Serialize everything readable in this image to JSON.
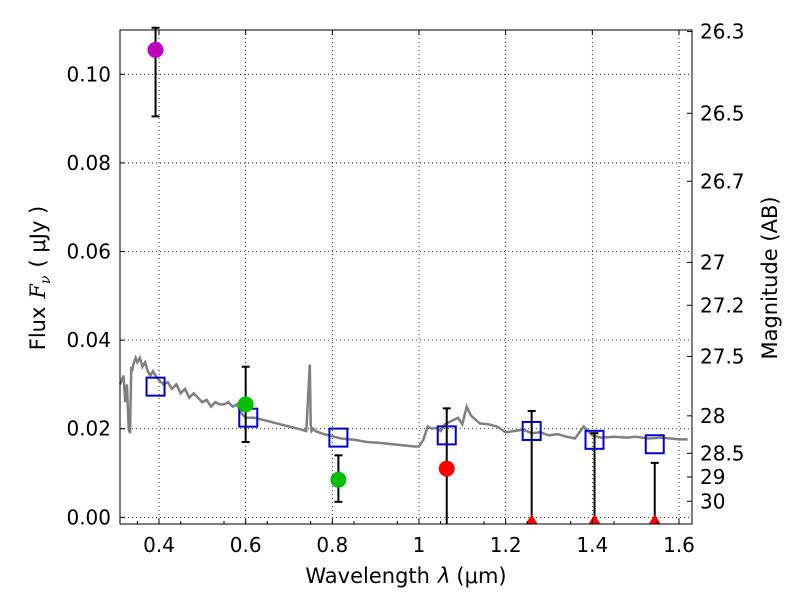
{
  "chart_data": {
    "type": "scatter",
    "xlabel_text": "Wavelength",
    "xlabel_symbol": "λ",
    "xlabel_unit": "(μm)",
    "ylabel_text": "Flux",
    "ylabel_symbol": "F",
    "ylabel_subscript": "ν",
    "ylabel_unit": "( μJy )",
    "y2label": "Magnitude (AB)",
    "xlim": [
      0.31,
      1.63
    ],
    "ylim": [
      -0.0015,
      0.11
    ],
    "xticks": [
      0.4,
      0.6,
      0.8,
      1.0,
      1.2,
      1.4,
      1.6
    ],
    "xtick_labels": [
      "0.4",
      "0.6",
      "0.8",
      "1",
      "1.2",
      "1.4",
      "1.6"
    ],
    "yticks": [
      0.0,
      0.02,
      0.04,
      0.06,
      0.08,
      0.1
    ],
    "ytick_labels": [
      "0.00",
      "0.02",
      "0.04",
      "0.06",
      "0.08",
      "0.10"
    ],
    "y2ticks": [
      {
        "mag": 26.3,
        "label": "26.3"
      },
      {
        "mag": 26.5,
        "label": "26.5"
      },
      {
        "mag": 26.7,
        "label": "26.7"
      },
      {
        "mag": 27.0,
        "label": "27"
      },
      {
        "mag": 27.2,
        "label": "27.2"
      },
      {
        "mag": 27.5,
        "label": "27.5"
      },
      {
        "mag": 28.0,
        "label": "28"
      },
      {
        "mag": 28.5,
        "label": "28.5"
      },
      {
        "mag": 29.0,
        "label": "29"
      },
      {
        "mag": 30.0,
        "label": "30"
      }
    ],
    "observed_points": [
      {
        "x": 0.392,
        "y": 0.1055,
        "yerr_low": 0.0905,
        "yerr_high": 0.1105,
        "color": "#bf00bf",
        "upper_limit": false
      },
      {
        "x": 0.6,
        "y": 0.0255,
        "yerr_low": 0.017,
        "yerr_high": 0.034,
        "color": "#00bf00",
        "upper_limit": false
      },
      {
        "x": 0.814,
        "y": 0.0085,
        "yerr_low": 0.0035,
        "yerr_high": 0.014,
        "color": "#00bf00",
        "upper_limit": false
      },
      {
        "x": 1.064,
        "y": 0.011,
        "yerr_low": -0.0015,
        "yerr_high": 0.0246,
        "color": "#ff0000",
        "upper_limit": false
      },
      {
        "x": 1.26,
        "y": 0.0,
        "yerr_low": -0.0015,
        "yerr_high": 0.024,
        "color": "#ff0000",
        "upper_limit": true
      },
      {
        "x": 1.405,
        "y": 0.0,
        "yerr_low": -0.0015,
        "yerr_high": 0.019,
        "color": "#ff0000",
        "upper_limit": true
      },
      {
        "x": 1.544,
        "y": 0.0,
        "yerr_low": -0.0015,
        "yerr_high": 0.0123,
        "color": "#ff0000",
        "upper_limit": true
      }
    ],
    "model_photometry": [
      {
        "x": 0.392,
        "y": 0.0295
      },
      {
        "x": 0.606,
        "y": 0.0225
      },
      {
        "x": 0.814,
        "y": 0.018
      },
      {
        "x": 1.064,
        "y": 0.0185
      },
      {
        "x": 1.26,
        "y": 0.0195
      },
      {
        "x": 1.405,
        "y": 0.0175
      },
      {
        "x": 1.544,
        "y": 0.0165
      }
    ],
    "sed_model": {
      "color": "#808080",
      "x": [
        0.31,
        0.318,
        0.322,
        0.326,
        0.33,
        0.333,
        0.336,
        0.338,
        0.342,
        0.346,
        0.35,
        0.356,
        0.362,
        0.368,
        0.374,
        0.38,
        0.386,
        0.392,
        0.4,
        0.41,
        0.42,
        0.43,
        0.44,
        0.45,
        0.46,
        0.47,
        0.48,
        0.49,
        0.5,
        0.51,
        0.52,
        0.53,
        0.54,
        0.55,
        0.56,
        0.57,
        0.58,
        0.59,
        0.6,
        0.62,
        0.64,
        0.66,
        0.68,
        0.7,
        0.72,
        0.74,
        0.748,
        0.75,
        0.752,
        0.756,
        0.76,
        0.78,
        0.8,
        0.82,
        0.85,
        0.88,
        0.91,
        0.94,
        0.97,
        0.99,
        1.0,
        1.01,
        1.02,
        1.03,
        1.04,
        1.05,
        1.06,
        1.07,
        1.08,
        1.09,
        1.1,
        1.11,
        1.12,
        1.14,
        1.16,
        1.18,
        1.2,
        1.22,
        1.24,
        1.26,
        1.28,
        1.3,
        1.32,
        1.34,
        1.36,
        1.38,
        1.4,
        1.42,
        1.45,
        1.48,
        1.5,
        1.53,
        1.56,
        1.6,
        1.62
      ],
      "y": [
        0.03,
        0.032,
        0.026,
        0.03,
        0.02,
        0.019,
        0.034,
        0.033,
        0.035,
        0.036,
        0.035,
        0.036,
        0.034,
        0.035,
        0.033,
        0.032,
        0.033,
        0.032,
        0.031,
        0.03,
        0.0305,
        0.029,
        0.03,
        0.028,
        0.029,
        0.027,
        0.028,
        0.027,
        0.026,
        0.0265,
        0.025,
        0.026,
        0.0255,
        0.0255,
        0.026,
        0.025,
        0.0255,
        0.0235,
        0.0225,
        0.0225,
        0.022,
        0.0215,
        0.021,
        0.0205,
        0.02,
        0.0195,
        0.0345,
        0.021,
        0.0195,
        0.02,
        0.0195,
        0.0188,
        0.0183,
        0.0178,
        0.0175,
        0.017,
        0.0168,
        0.0165,
        0.0162,
        0.016,
        0.016,
        0.0175,
        0.0205,
        0.02,
        0.0202,
        0.0195,
        0.021,
        0.0215,
        0.022,
        0.0225,
        0.021,
        0.025,
        0.023,
        0.0212,
        0.021,
        0.0205,
        0.0192,
        0.0195,
        0.0198,
        0.019,
        0.0192,
        0.0185,
        0.0188,
        0.0182,
        0.0178,
        0.0205,
        0.0185,
        0.018,
        0.0182,
        0.018,
        0.0182,
        0.0178,
        0.018,
        0.0176,
        0.0176
      ]
    }
  }
}
